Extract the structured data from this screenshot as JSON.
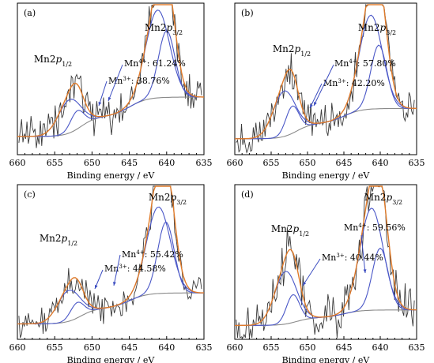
{
  "chart_data": [
    {
      "type": "line",
      "panel": "(a)",
      "xlabel": "Binding energy / eV",
      "xlim": [
        660,
        635
      ],
      "xticks": [
        660,
        655,
        650,
        645,
        640,
        635
      ],
      "peak_labels": {
        "left": "Mn2p1/2",
        "right": "Mn2p3/2"
      },
      "annotations": [
        "Mn4+: 61.24%",
        "Mn3+: 38.76%"
      ],
      "components": [
        {
          "name": "Mn4+",
          "percent": 61.24,
          "peaks": [
            641.2,
            653.0
          ]
        },
        {
          "name": "Mn3+",
          "percent": 38.76,
          "peaks": [
            640.0,
            652.0
          ]
        }
      ]
    },
    {
      "type": "line",
      "panel": "(b)",
      "xlabel": "Binding energy / eV",
      "xlim": [
        660,
        635
      ],
      "xticks": [
        660,
        655,
        650,
        645,
        640,
        635
      ],
      "peak_labels": {
        "left": "Mn2p1/2",
        "right": "Mn2p3/2"
      },
      "annotations": [
        "Mn4+: 57.80%",
        "Mn3+: 42.20%"
      ],
      "components": [
        {
          "name": "Mn4+",
          "percent": 57.8,
          "peaks": [
            641.3,
            653.2
          ]
        },
        {
          "name": "Mn3+",
          "percent": 42.2,
          "peaks": [
            640.2,
            652.1
          ]
        }
      ]
    },
    {
      "type": "line",
      "panel": "(c)",
      "xlabel": "Binding energy / eV",
      "xlim": [
        660,
        635
      ],
      "xticks": [
        660,
        655,
        650,
        645,
        640,
        635
      ],
      "peak_labels": {
        "left": "Mn2p1/2",
        "right": "Mn2p3/2"
      },
      "annotations": [
        "Mn4+: 55.42%",
        "Mn3+: 44.58%"
      ],
      "components": [
        {
          "name": "Mn4+",
          "percent": 55.42,
          "peaks": [
            641.1,
            653.1
          ]
        },
        {
          "name": "Mn3+",
          "percent": 44.58,
          "peaks": [
            640.1,
            652.0
          ]
        }
      ]
    },
    {
      "type": "line",
      "panel": "(d)",
      "xlabel": "Binding energy / eV",
      "xlim": [
        660,
        635
      ],
      "xticks": [
        660,
        655,
        650,
        645,
        640,
        635
      ],
      "peak_labels": {
        "left": "Mn2p1/2",
        "right": "Mn2p3/2"
      },
      "annotations": [
        "Mn4+: 59.56%",
        "Mn3+: 40.44%"
      ],
      "components": [
        {
          "name": "Mn4+",
          "percent": 59.56,
          "peaks": [
            641.2,
            653.0
          ]
        },
        {
          "name": "Mn3+",
          "percent": 40.44,
          "peaks": [
            640.0,
            652.0
          ]
        }
      ]
    }
  ],
  "colors": {
    "raw": "#3a3a3a",
    "envelope": "#e07b2a",
    "component": "#4a57c7",
    "background": "#8a8a8a",
    "arrow": "#3b4cc0"
  }
}
